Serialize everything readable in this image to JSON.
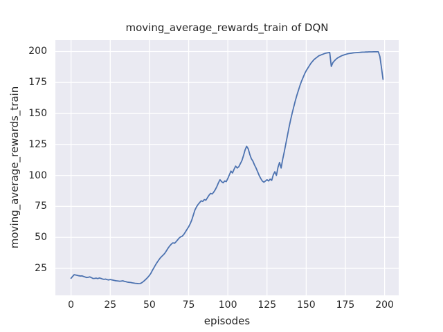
{
  "chart_data": {
    "type": "line",
    "title": "moving_average_rewards_train of DQN",
    "xlabel": "episodes",
    "ylabel": "moving_average_rewards_train",
    "x_start": 0,
    "x_step": 1,
    "values": [
      17.0,
      18.5,
      19.9,
      19.6,
      19.3,
      19.0,
      18.8,
      18.9,
      18.4,
      18.0,
      17.6,
      17.8,
      18.1,
      17.5,
      16.8,
      16.9,
      17.1,
      16.7,
      17.2,
      16.9,
      16.4,
      16.1,
      16.3,
      15.9,
      15.6,
      16.0,
      15.7,
      15.4,
      15.1,
      14.9,
      14.8,
      14.6,
      14.7,
      14.9,
      14.5,
      14.2,
      13.9,
      13.7,
      13.6,
      13.3,
      13.1,
      12.9,
      12.8,
      12.6,
      12.7,
      13.3,
      14.2,
      15.3,
      16.5,
      17.8,
      19.3,
      21.2,
      23.6,
      25.8,
      28.0,
      30.0,
      31.8,
      33.5,
      34.8,
      36.0,
      37.5,
      39.5,
      41.5,
      43.2,
      44.6,
      45.6,
      45.2,
      46.5,
      48.0,
      49.5,
      50.5,
      51.0,
      52.5,
      54.5,
      56.5,
      58.5,
      61.0,
      64.0,
      68.0,
      72.0,
      74.5,
      76.5,
      78.0,
      79.5,
      79.0,
      80.5,
      80.0,
      82.0,
      84.0,
      85.5,
      85.0,
      86.5,
      88.5,
      91.0,
      94.0,
      96.5,
      95.0,
      94.0,
      95.5,
      95.0,
      97.5,
      100.5,
      103.5,
      102.0,
      105.0,
      107.5,
      106.0,
      107.0,
      109.5,
      112.0,
      116.0,
      120.5,
      123.5,
      121.5,
      117.0,
      113.5,
      111.5,
      108.5,
      106.0,
      103.0,
      100.0,
      97.5,
      95.5,
      94.5,
      95.5,
      96.5,
      95.5,
      97.0,
      96.0,
      100.5,
      103.0,
      100.0,
      106.5,
      110.5,
      106.0,
      113.0,
      119.0,
      125.5,
      132.0,
      138.5,
      144.5,
      150.0,
      155.0,
      160.0,
      164.5,
      168.5,
      172.5,
      176.0,
      179.0,
      182.0,
      184.5,
      186.5,
      188.5,
      190.5,
      192.0,
      193.5,
      194.5,
      195.5,
      196.5,
      197.0,
      197.5,
      198.0,
      198.5,
      198.8,
      199.0,
      199.2,
      188.0,
      191.0,
      192.5,
      193.8,
      194.8,
      195.5,
      196.2,
      196.8,
      197.2,
      197.6,
      198.0,
      198.3,
      198.5,
      198.7,
      198.9,
      199.0,
      199.1,
      199.2,
      199.3,
      199.4,
      199.5,
      199.5,
      199.6,
      199.6,
      199.7,
      199.7,
      199.7,
      199.8,
      199.8,
      199.8,
      199.8,
      196.0,
      187.0,
      177.5
    ],
    "x_ticks": [
      0,
      25,
      50,
      75,
      100,
      125,
      150,
      175,
      200
    ],
    "y_ticks": [
      25,
      50,
      75,
      100,
      125,
      150,
      175,
      200
    ],
    "xlim": [
      -10,
      209
    ],
    "ylim": [
      3.2,
      209.2
    ],
    "grid": true,
    "legend_position": "none",
    "line_color": "#4C72B0",
    "plot_bg_color": "#EAEAF2",
    "grid_color": "#FFFFFF",
    "text_color": "#262626"
  }
}
